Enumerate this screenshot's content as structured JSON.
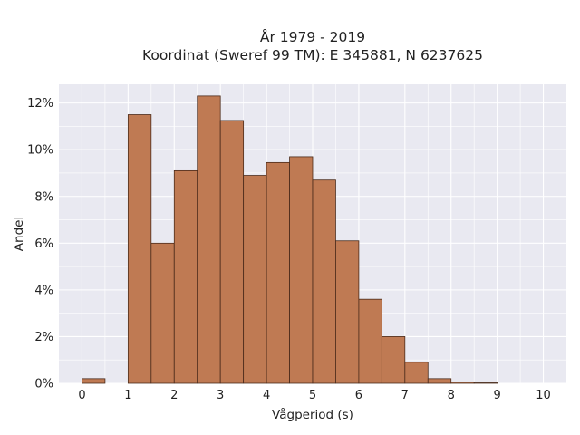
{
  "chart_data": {
    "type": "bar",
    "title_line1": "År 1979 - 2019",
    "title_line2": "Koordinat (Sweref 99 TM): E 345881, N 6237625",
    "xlabel": "Vågperiod (s)",
    "ylabel": "Andel",
    "xlim": [
      -0.5,
      10.5
    ],
    "ylim": [
      0,
      12.8
    ],
    "x_ticks": [
      0,
      1,
      2,
      3,
      4,
      5,
      6,
      7,
      8,
      9,
      10
    ],
    "y_ticks": [
      0,
      2,
      4,
      6,
      8,
      10,
      12
    ],
    "y_tick_labels": [
      "0%",
      "2%",
      "4%",
      "6%",
      "8%",
      "10%",
      "12%"
    ],
    "bin_width": 0.5,
    "bins": [
      {
        "x0": 0.0,
        "value": 0.2
      },
      {
        "x0": 0.5,
        "value": 0.0
      },
      {
        "x0": 1.0,
        "value": 11.5
      },
      {
        "x0": 1.5,
        "value": 6.0
      },
      {
        "x0": 2.0,
        "value": 9.1
      },
      {
        "x0": 2.5,
        "value": 12.3
      },
      {
        "x0": 3.0,
        "value": 11.25
      },
      {
        "x0": 3.5,
        "value": 8.9
      },
      {
        "x0": 4.0,
        "value": 9.45
      },
      {
        "x0": 4.5,
        "value": 9.7
      },
      {
        "x0": 5.0,
        "value": 8.7
      },
      {
        "x0": 5.5,
        "value": 6.1
      },
      {
        "x0": 6.0,
        "value": 3.6
      },
      {
        "x0": 6.5,
        "value": 2.0
      },
      {
        "x0": 7.0,
        "value": 0.9
      },
      {
        "x0": 7.5,
        "value": 0.2
      },
      {
        "x0": 8.0,
        "value": 0.05
      },
      {
        "x0": 8.5,
        "value": 0.02
      }
    ],
    "grid": true,
    "colors": {
      "bar_fill": "#bf7a53",
      "bar_edge": "#4a2a1a",
      "plot_bg": "#e9e9f1",
      "grid": "#ffffff"
    }
  }
}
